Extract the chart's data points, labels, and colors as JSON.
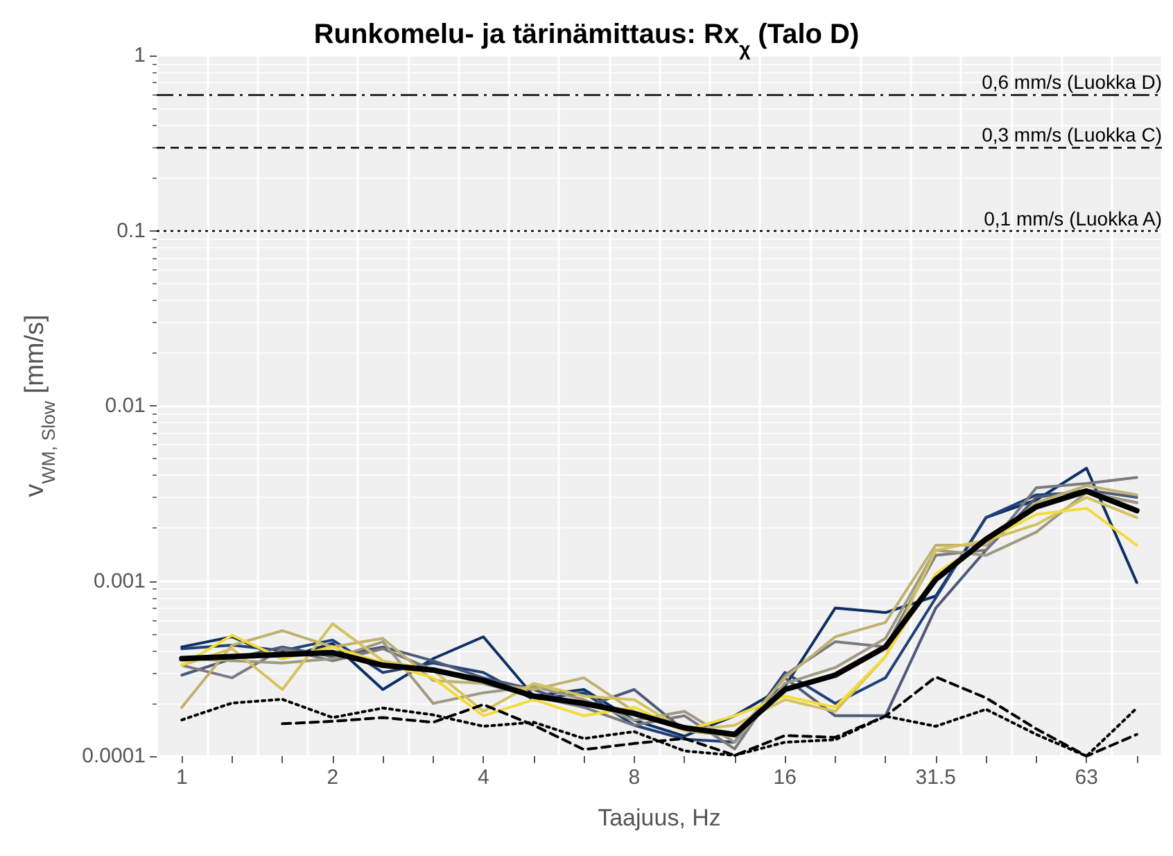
{
  "chart_data": {
    "type": "line",
    "title": "Runkomelu- ja tärinämittaus: Rx$_{χ}$ (Talo D)",
    "xlabel": "Taajuus, Hz",
    "ylabel": "v$_{WM, Slow}$ [mm/s]",
    "categories": [
      "1",
      null,
      null,
      "2",
      null,
      null,
      "4",
      null,
      null,
      "8",
      null,
      null,
      "16",
      null,
      null,
      "31.5",
      null,
      null,
      "63",
      null
    ],
    "log": "y",
    "ylim": [
      0.0001,
      1
    ],
    "yticks": [
      0.0001,
      0.001,
      0.01,
      0.1,
      1
    ],
    "grid": true,
    "marker": "none",
    "series": [
      {
        "color": "#0d2f63",
        "values": [
          0.00042,
          0.00048,
          0.00036,
          0.00044,
          0.00024,
          0.00036,
          0.00048,
          0.00022,
          0.00024,
          0.00016,
          0.00013,
          0.00017,
          0.00025,
          0.0007,
          0.00066,
          0.00082,
          0.0023,
          0.0029,
          0.0044,
          0.00098
        ]
      },
      {
        "color": "#1f4178",
        "values": [
          0.00041,
          0.00043,
          0.0004,
          0.00046,
          0.0003,
          0.00034,
          0.0003,
          0.00021,
          0.00023,
          0.00015,
          0.000125,
          0.00012,
          0.0003,
          0.0002,
          0.00028,
          0.0008,
          0.0023,
          0.0031,
          0.0032,
          0.0028
        ]
      },
      {
        "color": "#4d5a78",
        "values": [
          0.00029,
          0.00036,
          0.00042,
          0.00037,
          0.00042,
          0.00035,
          0.00028,
          0.00024,
          0.00019,
          0.00024,
          0.00014,
          0.00013,
          0.00028,
          0.00017,
          0.00017,
          0.0007,
          0.0015,
          0.003,
          0.0033,
          0.003
        ]
      },
      {
        "color": "#7a7a80",
        "values": [
          0.00033,
          0.00028,
          0.00041,
          0.00035,
          0.00041,
          0.00031,
          0.00026,
          0.00022,
          0.00019,
          0.00015,
          0.00017,
          0.00011,
          0.00029,
          0.00045,
          0.00042,
          0.0014,
          0.0015,
          0.0034,
          0.0036,
          0.0039
        ]
      },
      {
        "color": "#9e9a82",
        "values": [
          0.00036,
          0.00035,
          0.00034,
          0.00036,
          0.00045,
          0.0002,
          0.00023,
          0.00025,
          0.00021,
          0.00016,
          0.00018,
          0.00012,
          0.00026,
          0.00032,
          0.00047,
          0.0015,
          0.0014,
          0.0019,
          0.0032,
          0.0028
        ]
      },
      {
        "color": "#bfb170",
        "values": [
          0.00019,
          0.00043,
          0.00052,
          0.00042,
          0.00047,
          0.00027,
          0.00026,
          0.00024,
          0.00028,
          0.00018,
          0.00014,
          0.00013,
          0.00028,
          0.00048,
          0.00058,
          0.0016,
          0.0016,
          0.0028,
          0.0035,
          0.0031
        ]
      },
      {
        "color": "#d4c25f",
        "values": [
          0.00033,
          0.00041,
          0.00024,
          0.00057,
          0.00035,
          0.00031,
          0.00018,
          0.00026,
          0.00022,
          0.00021,
          0.00014,
          0.00015,
          0.00021,
          0.00018,
          0.00037,
          0.0015,
          0.0017,
          0.0021,
          0.003,
          0.0023
        ]
      },
      {
        "color": "#f2dc3c",
        "values": [
          0.00033,
          0.00049,
          0.00036,
          0.00042,
          0.00034,
          0.00028,
          0.00017,
          0.00021,
          0.00017,
          0.00019,
          0.00014,
          0.00017,
          0.00022,
          0.00019,
          0.00037,
          0.0011,
          0.0017,
          0.0024,
          0.0026,
          0.0016
        ]
      },
      {
        "color": "#000000",
        "line_style": "dashed",
        "values": [
          null,
          null,
          0.000153,
          0.000158,
          0.000166,
          0.000156,
          0.000197,
          0.00015,
          0.000109,
          0.000118,
          0.000126,
          0.000101,
          0.000131,
          0.000128,
          0.000169,
          0.000283,
          0.000215,
          0.000143,
          0.0001,
          0.000133
        ]
      },
      {
        "color": "#000000",
        "line_style": "dotted",
        "values": [
          0.000161,
          0.000201,
          0.000211,
          0.000166,
          0.000188,
          0.000172,
          0.000148,
          0.000156,
          0.000126,
          0.000138,
          0.000107,
          0.000101,
          0.00012,
          0.000124,
          0.000169,
          0.000148,
          0.000185,
          0.000133,
          0.0001,
          0.000188
        ]
      },
      {
        "color": "#000000",
        "values": [
          0.00036,
          0.00037,
          0.00038,
          0.00039,
          0.00033,
          0.00031,
          0.00027,
          0.00022,
          0.0002,
          0.000175,
          0.000145,
          0.000133,
          0.00024,
          0.00029,
          0.00042,
          0.00102,
          0.00173,
          0.00265,
          0.00326,
          0.00252
        ]
      }
    ],
    "ref_lines": [
      {
        "axis": "y",
        "value": 0.6,
        "label": "0,6 mm/s (Luokka D)",
        "color": "#000000",
        "line_style": "dashdot"
      },
      {
        "axis": "y",
        "value": 0.3,
        "label": "0,3 mm/s (Luokka C)",
        "color": "#000000",
        "line_style": "dashed"
      },
      {
        "axis": "y",
        "value": 0.1,
        "label": "0,1 mm/s (Luokka A)",
        "color": "#000000",
        "line_style": "dotted"
      }
    ]
  }
}
